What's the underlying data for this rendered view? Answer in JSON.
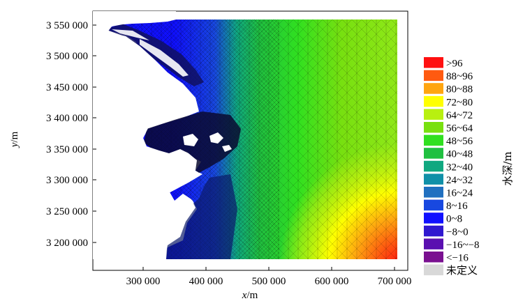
{
  "figure": {
    "x_axis": {
      "label_italic": "x",
      "label_unit": "/m",
      "ticks": [
        "300 000",
        "400 000",
        "500 000",
        "600 000",
        "700 000"
      ]
    },
    "y_axis": {
      "label_italic": "y",
      "label_unit": "/m",
      "ticks": [
        "3 550 000",
        "3 500 000",
        "3 450 000",
        "3 400 000",
        "3 350 000",
        "3 300 000",
        "3 250 000",
        "3 200 000"
      ]
    },
    "colorbar": {
      "title": "水深/m",
      "entries": [
        {
          "label": ">96",
          "color": "#ff1010"
        },
        {
          "label": "88~96",
          "color": "#ff5a10"
        },
        {
          "label": "80~88",
          "color": "#ffa510"
        },
        {
          "label": "72~80",
          "color": "#ffff00"
        },
        {
          "label": "64~72",
          "color": "#b8f010"
        },
        {
          "label": "56~64",
          "color": "#78e010"
        },
        {
          "label": "48~56",
          "color": "#30e020"
        },
        {
          "label": "40~48",
          "color": "#20c040"
        },
        {
          "label": "32~40",
          "color": "#10a880"
        },
        {
          "label": "24~32",
          "color": "#1090a8"
        },
        {
          "label": "16~24",
          "color": "#2070c0"
        },
        {
          "label": "8~16",
          "color": "#1848e0"
        },
        {
          "label": "0~8",
          "color": "#1010ff"
        },
        {
          "label": "−8~0",
          "color": "#3018d0"
        },
        {
          "label": "−16~−8",
          "color": "#5a10b0"
        },
        {
          "label": "<−16",
          "color": "#7a1090"
        },
        {
          "label": "未定义",
          "color": "#d8d8d8"
        }
      ]
    }
  }
}
